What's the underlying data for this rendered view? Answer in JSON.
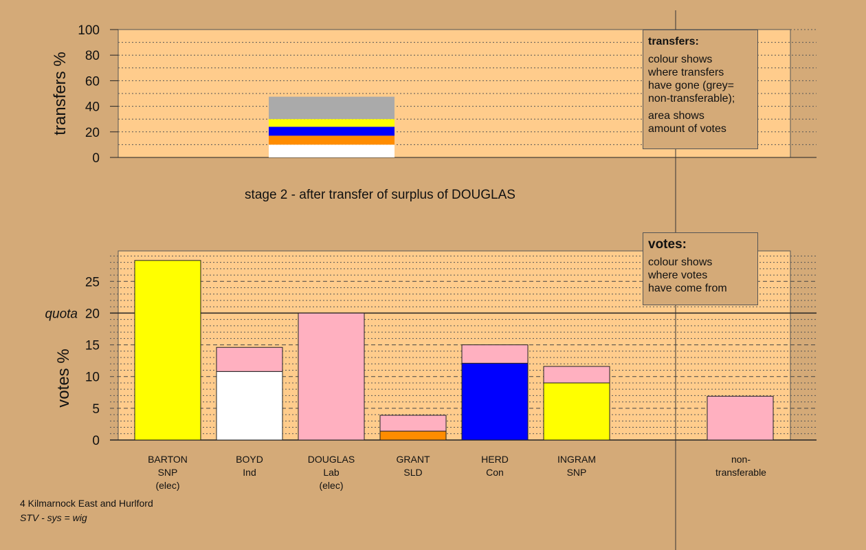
{
  "chart_data": [
    {
      "type": "bar",
      "stacked": true,
      "ylabel": "transfers %",
      "ylim": [
        0,
        100
      ],
      "yticks": [
        0,
        20,
        40,
        60,
        80,
        100
      ],
      "source_candidate": "DOUGLAS",
      "segments": [
        {
          "name": "non-transferable",
          "color": "#aaaaaa",
          "value": 17.5
        },
        {
          "name": "SNP",
          "color": "#ffff00",
          "value": 6.0
        },
        {
          "name": "Con",
          "color": "#0000ff",
          "value": 7.0
        },
        {
          "name": "SLD",
          "color": "#ff8c00",
          "value": 7.0
        },
        {
          "name": "Ind",
          "color": "#ffffff",
          "value": 10.0
        }
      ],
      "segment_order_bottom_up": [
        "Ind",
        "SLD",
        "Con",
        "SNP",
        "non-transferable"
      ],
      "legend": {
        "title": "transfers:",
        "lines": [
          "colour shows\nwhere transfers\nhave gone (grey=\nnon-transferable);",
          "area shows\namount of votes"
        ]
      }
    },
    {
      "type": "bar",
      "stacked": true,
      "title": "stage 2 - after transfer of surplus of DOUGLAS",
      "ylabel": "votes %",
      "ylim": [
        0,
        29.8
      ],
      "yticks": [
        0,
        5,
        10,
        15,
        20,
        25
      ],
      "quota": {
        "label": "quota",
        "value": 20
      },
      "categories": [
        {
          "lines": [
            "BARTON",
            "SNP",
            "(elec)"
          ]
        },
        {
          "lines": [
            "BOYD",
            "Ind"
          ]
        },
        {
          "lines": [
            "DOUGLAS",
            "Lab",
            "(elec)"
          ]
        },
        {
          "lines": [
            "GRANT",
            "SLD"
          ]
        },
        {
          "lines": [
            "HERD",
            "Con"
          ]
        },
        {
          "lines": [
            "INGRAM",
            "SNP"
          ]
        },
        {
          "lines": [
            "non-",
            "transferable"
          ]
        }
      ],
      "bars": [
        {
          "candidate": "BARTON",
          "slot": 0,
          "segments": [
            {
              "color": "#ffff00",
              "value": 28.3
            }
          ]
        },
        {
          "candidate": "BOYD",
          "slot": 1,
          "segments": [
            {
              "color": "#ffffff",
              "value": 10.8
            },
            {
              "color": "#ffb0c0",
              "value": 3.8
            }
          ]
        },
        {
          "candidate": "DOUGLAS",
          "slot": 2,
          "segments": [
            {
              "color": "#ffb0c0",
              "value": 20.0
            }
          ]
        },
        {
          "candidate": "GRANT",
          "slot": 3,
          "segments": [
            {
              "color": "#ff8c00",
              "value": 1.4
            },
            {
              "color": "#ffb0c0",
              "value": 2.5
            }
          ]
        },
        {
          "candidate": "HERD",
          "slot": 4,
          "segments": [
            {
              "color": "#0000ff",
              "value": 12.1
            },
            {
              "color": "#ffb0c0",
              "value": 2.9
            }
          ]
        },
        {
          "candidate": "INGRAM",
          "slot": 5,
          "segments": [
            {
              "color": "#ffff00",
              "value": 9.0
            },
            {
              "color": "#ffb0c0",
              "value": 2.6
            }
          ]
        },
        {
          "candidate": "non-transferable",
          "slot": 7,
          "segments": [
            {
              "color": "#ffb0c0",
              "value": 6.9
            }
          ]
        }
      ],
      "legend": {
        "title": "votes:",
        "lines": [
          "colour shows\nwhere votes\nhave come from"
        ]
      }
    }
  ],
  "footer": {
    "constituency": "4 Kilmarnock East and Hurlford",
    "system": "STV - sys = wig"
  },
  "colors": {
    "background": "#d4aa78",
    "plot_area": "#ffcc8c",
    "grid": "#555555"
  }
}
